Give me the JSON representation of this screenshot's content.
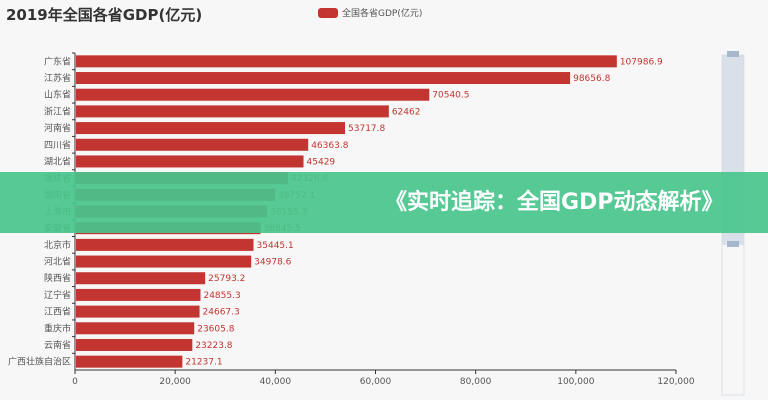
{
  "chart_data": {
    "type": "bar",
    "orientation": "horizontal",
    "title": "2019年全国各省GDP(亿元)",
    "legend": {
      "entries": [
        "全国各省GDP(亿元)"
      ],
      "placement": "top"
    },
    "categories": [
      "广东省",
      "江苏省",
      "山东省",
      "浙江省",
      "河南省",
      "四川省",
      "湖北省",
      "福建省",
      "湖南省",
      "上海市",
      "安徽省",
      "北京市",
      "河北省",
      "陕西省",
      "辽宁省",
      "江西省",
      "重庆市",
      "云南省",
      "广西壮族自治区"
    ],
    "series": [
      {
        "name": "全国各省GDP(亿元)",
        "color": "#c23531",
        "values": [
          107986.9,
          98656.8,
          70540.5,
          62462,
          53717.8,
          46363.8,
          45429,
          42326.6,
          39752.1,
          38155.3,
          36845.5,
          35445.1,
          34978.6,
          25793.2,
          24855.3,
          24667.3,
          23605.8,
          23223.8,
          21237.1
        ],
        "labels": [
          "107986.9",
          "98656.8",
          "70540.5",
          "62462",
          "53717.8",
          "46363.8",
          "45429",
          "42326.6",
          "39752.1",
          "38155.3",
          "36845.5",
          "35445.1",
          "34978.6",
          "25793.2",
          "24855.3",
          "24667.3",
          "23605.8",
          "23223.8",
          "21237.1"
        ]
      }
    ],
    "xlim": [
      0,
      120000
    ],
    "xticks": [
      "0",
      "20,000",
      "40,000",
      "60,000",
      "80,000",
      "100,000",
      "120,000"
    ],
    "grid": false,
    "datazoom": "vertical slider on right"
  },
  "banner": {
    "text": "《实时追踪：全国GDP动态解析》",
    "color": "#48c48c"
  }
}
